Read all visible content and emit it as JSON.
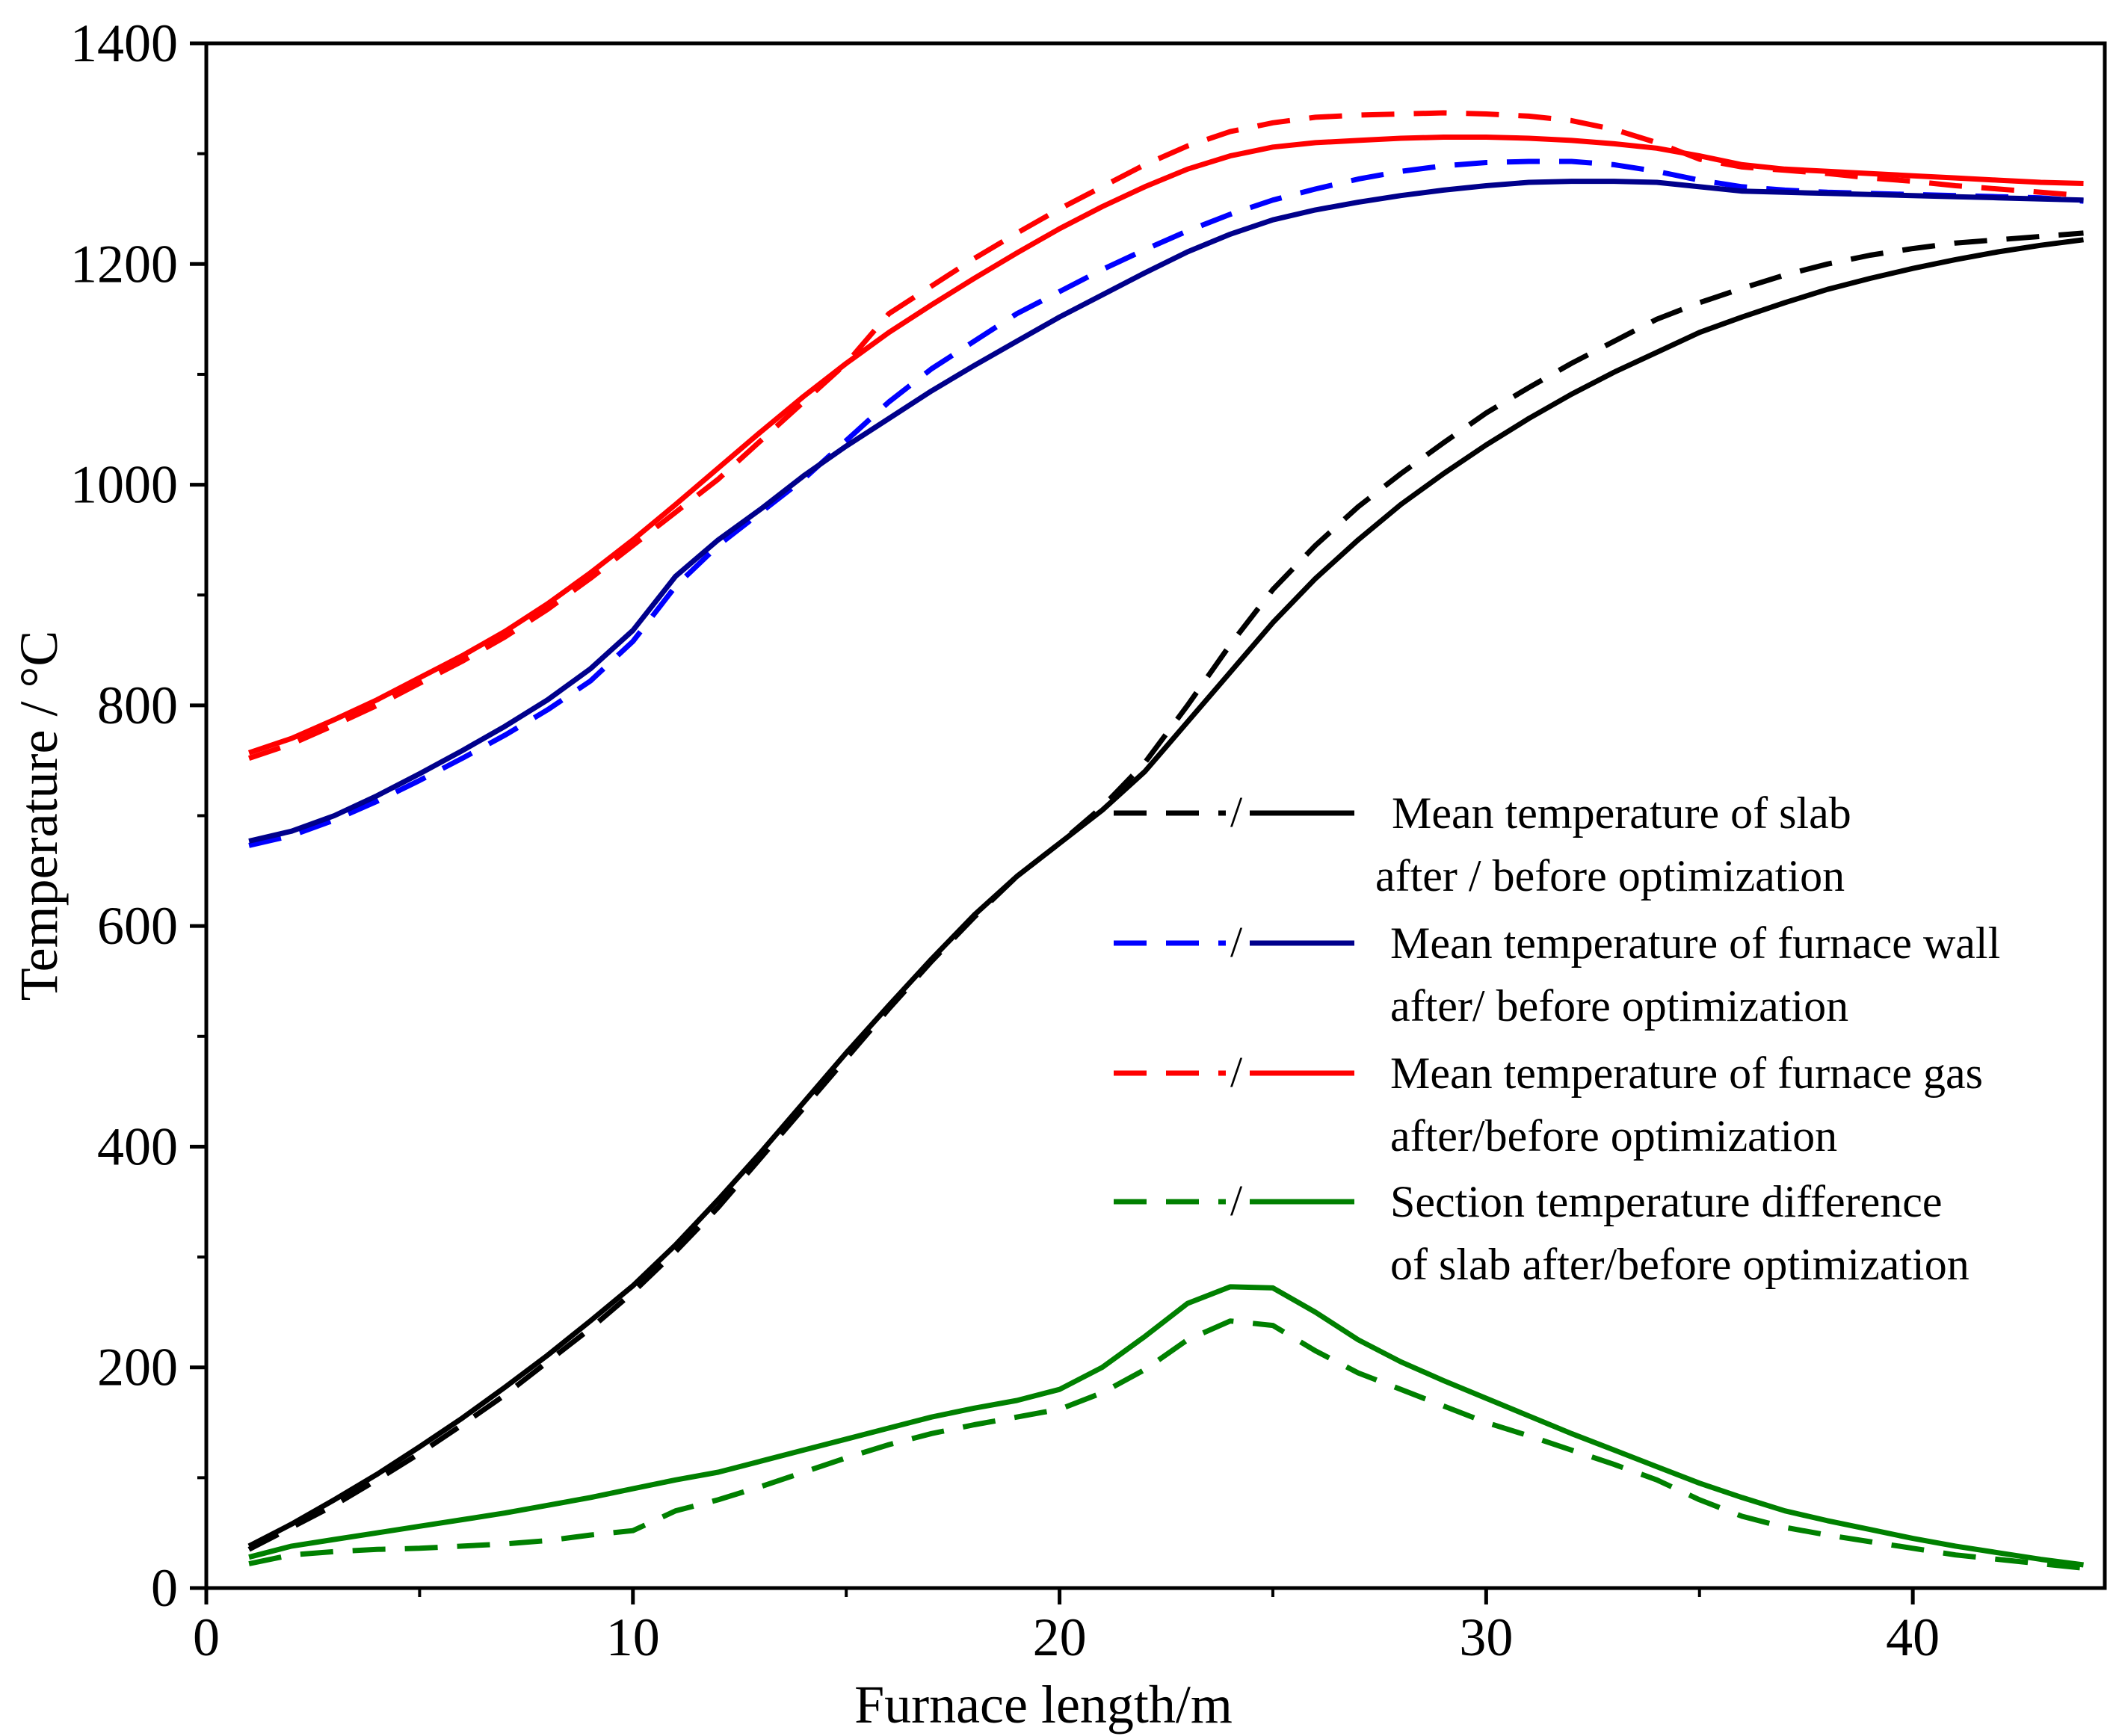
{
  "chart_data": {
    "type": "line",
    "title": "",
    "xlabel": "Furnace length/m",
    "ylabel": "Temperature / °C",
    "xlim": [
      0,
      44.5
    ],
    "ylim": [
      0,
      1400
    ],
    "xticks": [
      0,
      10,
      20,
      30,
      40
    ],
    "yticks": [
      0,
      200,
      400,
      600,
      800,
      1000,
      1200,
      1400
    ],
    "grid": false,
    "legend_position": "center-right",
    "series": [
      {
        "name": "Mean temperature of slab after optimization",
        "color": "#000000",
        "style": "dashed",
        "x": [
          1,
          2,
          3,
          4,
          5,
          6,
          7,
          8,
          9,
          10,
          11,
          12,
          13,
          14,
          15,
          16,
          17,
          18,
          19,
          20,
          21,
          22,
          23,
          24,
          25,
          26,
          27,
          28,
          29,
          30,
          31,
          32,
          33,
          34,
          35,
          36,
          37,
          38,
          39,
          40,
          41,
          42,
          43,
          44
        ],
        "y": [
          35,
          55,
          75,
          98,
          122,
          148,
          175,
          205,
          235,
          268,
          305,
          345,
          390,
          435,
          480,
          525,
          568,
          608,
          645,
          675,
          708,
          748,
          800,
          855,
          905,
          945,
          980,
          1010,
          1038,
          1065,
          1088,
          1110,
          1130,
          1150,
          1165,
          1178,
          1190,
          1200,
          1208,
          1214,
          1219,
          1222,
          1225,
          1228
        ]
      },
      {
        "name": "Mean temperature of slab before optimization",
        "color": "#000000",
        "style": "solid",
        "x": [
          1,
          2,
          3,
          4,
          5,
          6,
          7,
          8,
          9,
          10,
          11,
          12,
          13,
          14,
          15,
          16,
          17,
          18,
          19,
          20,
          21,
          22,
          23,
          24,
          25,
          26,
          27,
          28,
          29,
          30,
          31,
          32,
          33,
          34,
          35,
          36,
          37,
          38,
          39,
          40,
          41,
          42,
          43,
          44
        ],
        "y": [
          38,
          58,
          80,
          103,
          128,
          154,
          182,
          211,
          242,
          274,
          311,
          352,
          395,
          440,
          485,
          528,
          570,
          610,
          645,
          675,
          705,
          740,
          785,
          830,
          875,
          915,
          950,
          982,
          1010,
          1036,
          1060,
          1082,
          1102,
          1120,
          1138,
          1152,
          1165,
          1177,
          1187,
          1196,
          1204,
          1211,
          1217,
          1222
        ]
      },
      {
        "name": "Mean temperature of furnace wall after optimization",
        "color": "#0000ff",
        "style": "dashed",
        "x": [
          1,
          2,
          3,
          4,
          5,
          6,
          7,
          8,
          9,
          10,
          11,
          12,
          13,
          14,
          15,
          16,
          17,
          18,
          19,
          20,
          21,
          22,
          23,
          24,
          25,
          26,
          27,
          28,
          29,
          30,
          31,
          32,
          33,
          34,
          35,
          36,
          37,
          38,
          39,
          40,
          41,
          42,
          43,
          44
        ],
        "y": [
          673,
          682,
          696,
          713,
          732,
          752,
          773,
          796,
          822,
          858,
          908,
          945,
          975,
          1005,
          1040,
          1075,
          1105,
          1130,
          1155,
          1175,
          1195,
          1213,
          1230,
          1245,
          1258,
          1268,
          1277,
          1284,
          1289,
          1292,
          1293,
          1293,
          1290,
          1284,
          1276,
          1270,
          1267,
          1265,
          1264,
          1263,
          1262,
          1261,
          1260,
          1257
        ]
      },
      {
        "name": "Mean temperature of furnace wall before optimization",
        "color": "#00008b",
        "style": "solid",
        "x": [
          1,
          2,
          3,
          4,
          5,
          6,
          7,
          8,
          9,
          10,
          11,
          12,
          13,
          14,
          15,
          16,
          17,
          18,
          19,
          20,
          21,
          22,
          23,
          24,
          25,
          26,
          27,
          28,
          29,
          30,
          31,
          32,
          33,
          34,
          35,
          36,
          37,
          38,
          39,
          40,
          41,
          42,
          43,
          44
        ],
        "y": [
          677,
          686,
          700,
          718,
          738,
          759,
          781,
          805,
          833,
          868,
          917,
          950,
          978,
          1008,
          1035,
          1060,
          1085,
          1108,
          1130,
          1152,
          1172,
          1192,
          1211,
          1227,
          1240,
          1249,
          1256,
          1262,
          1267,
          1271,
          1274,
          1275,
          1275,
          1274,
          1270,
          1266,
          1265,
          1264,
          1263,
          1262,
          1261,
          1260,
          1259,
          1258
        ]
      },
      {
        "name": "Mean temperature of furnace gas after optimization",
        "color": "#ff0000",
        "style": "dashed",
        "x": [
          1,
          2,
          3,
          4,
          5,
          6,
          7,
          8,
          9,
          10,
          11,
          12,
          13,
          14,
          15,
          16,
          17,
          18,
          19,
          20,
          21,
          22,
          23,
          24,
          25,
          26,
          27,
          28,
          29,
          30,
          31,
          32,
          33,
          34,
          35,
          36,
          37,
          38,
          39,
          40,
          41,
          42,
          43,
          44
        ],
        "y": [
          752,
          765,
          782,
          800,
          820,
          840,
          862,
          887,
          915,
          945,
          975,
          1005,
          1040,
          1075,
          1110,
          1155,
          1180,
          1205,
          1228,
          1250,
          1270,
          1290,
          1307,
          1320,
          1328,
          1333,
          1335,
          1336,
          1337,
          1336,
          1334,
          1330,
          1322,
          1310,
          1295,
          1288,
          1285,
          1282,
          1278,
          1275,
          1271,
          1268,
          1265,
          1262
        ]
      },
      {
        "name": "Mean temperature of furnace gas before optimization",
        "color": "#ff0000",
        "style": "solid",
        "x": [
          1,
          2,
          3,
          4,
          5,
          6,
          7,
          8,
          9,
          10,
          11,
          12,
          13,
          14,
          15,
          16,
          17,
          18,
          19,
          20,
          21,
          22,
          23,
          24,
          25,
          26,
          27,
          28,
          29,
          30,
          31,
          32,
          33,
          34,
          35,
          36,
          37,
          38,
          39,
          40,
          41,
          42,
          43,
          44
        ],
        "y": [
          757,
          770,
          787,
          805,
          825,
          845,
          867,
          892,
          920,
          950,
          982,
          1015,
          1048,
          1080,
          1110,
          1138,
          1163,
          1187,
          1210,
          1232,
          1252,
          1270,
          1286,
          1298,
          1306,
          1310,
          1312,
          1314,
          1315,
          1315,
          1314,
          1312,
          1309,
          1305,
          1298,
          1290,
          1286,
          1284,
          1282,
          1280,
          1278,
          1276,
          1274,
          1273
        ]
      },
      {
        "name": "Section temperature difference of slab after optimization",
        "color": "#008000",
        "style": "dashed",
        "x": [
          1,
          2,
          3,
          4,
          5,
          6,
          7,
          8,
          9,
          10,
          11,
          12,
          13,
          14,
          15,
          16,
          17,
          18,
          19,
          20,
          21,
          22,
          23,
          24,
          25,
          26,
          27,
          28,
          29,
          30,
          31,
          32,
          33,
          34,
          35,
          36,
          37,
          38,
          39,
          40,
          41,
          42,
          43,
          44
        ],
        "y": [
          22,
          30,
          33,
          35,
          36,
          38,
          40,
          43,
          48,
          52,
          70,
          80,
          92,
          105,
          118,
          130,
          140,
          148,
          155,
          162,
          177,
          198,
          225,
          242,
          238,
          215,
          195,
          180,
          165,
          150,
          138,
          125,
          112,
          98,
          80,
          65,
          55,
          48,
          42,
          36,
          30,
          26,
          22,
          18
        ]
      },
      {
        "name": "Section temperature difference of slab before optimization",
        "color": "#008000",
        "style": "solid",
        "x": [
          1,
          2,
          3,
          4,
          5,
          6,
          7,
          8,
          9,
          10,
          11,
          12,
          13,
          14,
          15,
          16,
          17,
          18,
          19,
          20,
          21,
          22,
          23,
          24,
          25,
          26,
          27,
          28,
          29,
          30,
          31,
          32,
          33,
          34,
          35,
          36,
          37,
          38,
          39,
          40,
          41,
          42,
          43,
          44
        ],
        "y": [
          28,
          38,
          44,
          50,
          56,
          62,
          68,
          75,
          82,
          90,
          98,
          105,
          115,
          125,
          135,
          145,
          155,
          163,
          170,
          180,
          200,
          228,
          258,
          273,
          272,
          250,
          225,
          205,
          188,
          172,
          156,
          140,
          125,
          110,
          95,
          82,
          70,
          61,
          53,
          45,
          38,
          32,
          26,
          21
        ]
      }
    ],
    "legend": [
      {
        "line1": "Mean temperature of slab",
        "line2": "after / before optimization",
        "color_dashed": "#000000",
        "color_solid": "#000000",
        "separator": "/"
      },
      {
        "line1": "Mean temperature of furnace wall",
        "line2": "after/ before  optimization",
        "color_dashed": "#0000ff",
        "color_solid": "#00008b",
        "separator": "/"
      },
      {
        "line1": "Mean temperature of furnace gas",
        "line2": "after/before optimization",
        "color_dashed": "#ff0000",
        "color_solid": "#ff0000",
        "separator": "/"
      },
      {
        "line1": "Section temperature difference",
        "line2": "of slab after/before optimization",
        "color_dashed": "#008000",
        "color_solid": "#008000",
        "separator": "/"
      }
    ]
  }
}
